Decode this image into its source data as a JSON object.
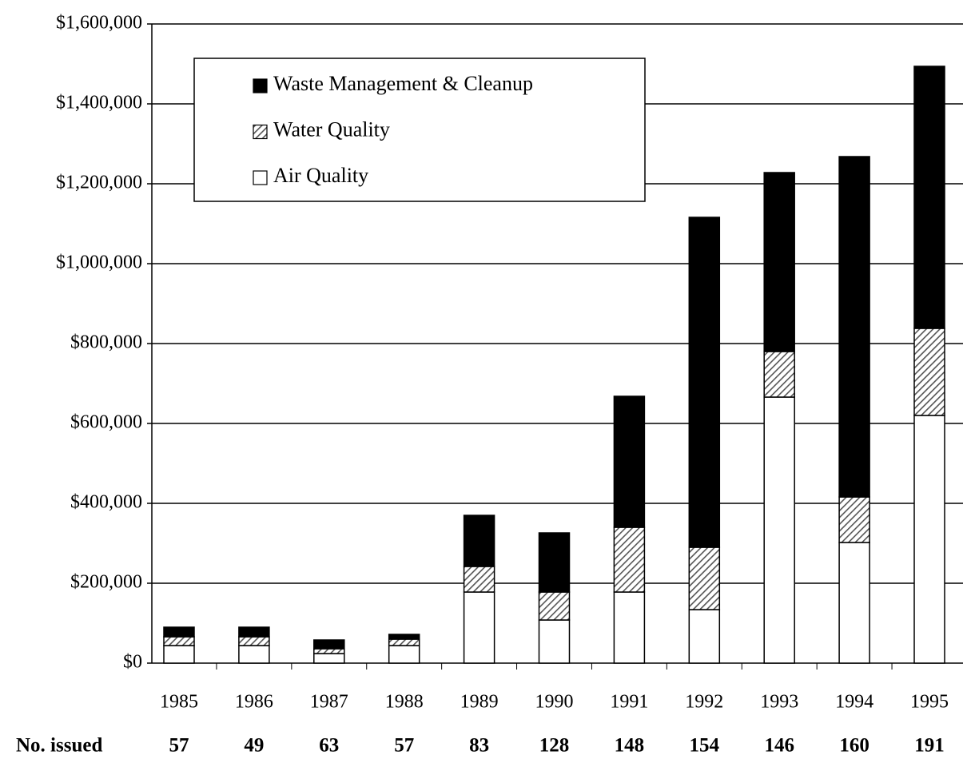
{
  "chart_data": {
    "type": "stacked_bar",
    "categories": [
      "1985",
      "1986",
      "1987",
      "1988",
      "1989",
      "1990",
      "1991",
      "1992",
      "1993",
      "1994",
      "1995"
    ],
    "series": [
      {
        "name": "Air Quality",
        "color": "#ffffff",
        "values": [
          44000,
          44000,
          24000,
          44000,
          178000,
          108000,
          178000,
          134000,
          666000,
          302000,
          620000
        ]
      },
      {
        "name": "Water Quality",
        "color": "#555555",
        "pattern": "hatched",
        "values": [
          22000,
          22000,
          12000,
          16000,
          64000,
          70000,
          162000,
          156000,
          114000,
          114000,
          218000
        ]
      },
      {
        "name": "Waste Management & Cleanup",
        "color": "#000000",
        "values": [
          24000,
          24000,
          22000,
          12000,
          128000,
          148000,
          328000,
          826000,
          448000,
          852000,
          656000
        ]
      }
    ],
    "ylim": [
      0,
      1600000
    ],
    "yticks": [
      {
        "value": 0,
        "label": "$0"
      },
      {
        "value": 200000,
        "label": "$200,000"
      },
      {
        "value": 400000,
        "label": "$400,000"
      },
      {
        "value": 600000,
        "label": "$600,000"
      },
      {
        "value": 800000,
        "label": "$800,000"
      },
      {
        "value": 1000000,
        "label": "$1,000,000"
      },
      {
        "value": 1200000,
        "label": "$1,200,000"
      },
      {
        "value": 1400000,
        "label": "$1,400,000"
      },
      {
        "value": 1600000,
        "label": "$1,600,000"
      }
    ],
    "grid": true,
    "legend": "upper left",
    "counts_label": "No. issued",
    "counts": [
      57,
      49,
      63,
      57,
      83,
      128,
      148,
      154,
      146,
      160,
      191
    ]
  }
}
